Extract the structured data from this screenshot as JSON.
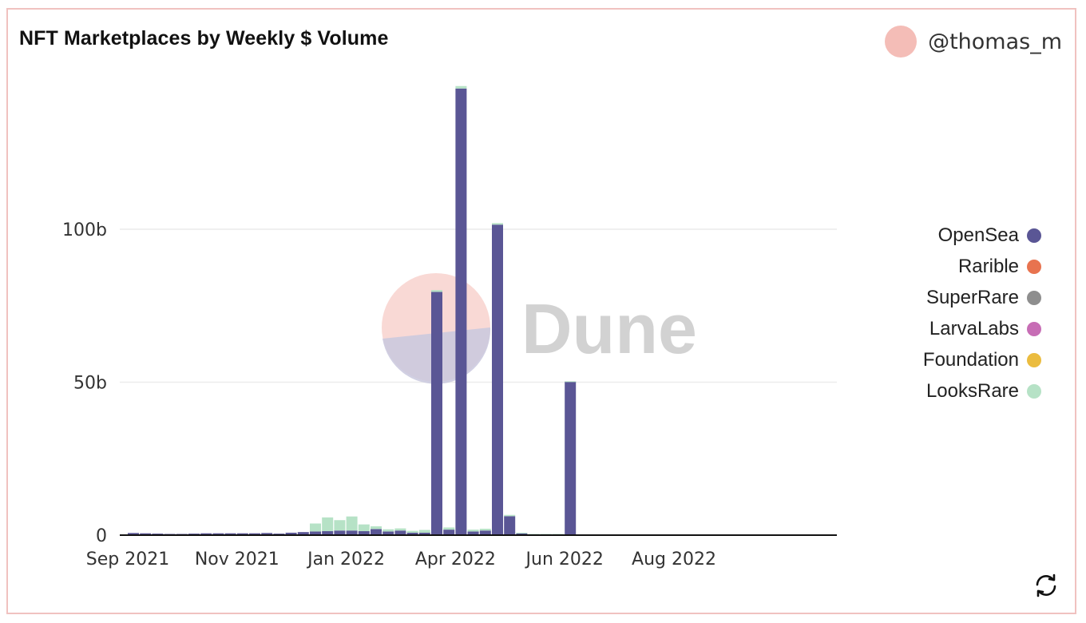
{
  "card": {
    "title": "NFT Marketplaces by Weekly $ Volume",
    "author": "@thomas_m",
    "avatar_color": "#f4bdb7",
    "watermark_text": "Dune",
    "refresh_icon": "refresh-icon"
  },
  "chart_data": {
    "type": "bar",
    "stacked": true,
    "title": "NFT Marketplaces by Weekly $ Volume",
    "xlabel": "",
    "ylabel": "",
    "ylim": [
      0,
      147
    ],
    "y_unit": "b",
    "yticks": [
      {
        "value": 0,
        "label": "0"
      },
      {
        "value": 50,
        "label": "50b"
      },
      {
        "value": 100,
        "label": "100b"
      }
    ],
    "xticks": [
      {
        "week_index": 0,
        "label": "Sep 2021"
      },
      {
        "week_index": 9,
        "label": "Nov 2021"
      },
      {
        "week_index": 18,
        "label": "Jan 2022"
      },
      {
        "week_index": 27,
        "label": "Apr 2022"
      },
      {
        "week_index": 36,
        "label": "Jun 2022"
      },
      {
        "week_index": 45,
        "label": "Aug 2022"
      }
    ],
    "grid": true,
    "legend_position": "right",
    "series": [
      {
        "name": "OpenSea",
        "color": "#5a5695",
        "values": [
          0.7,
          0.6,
          0.5,
          0.4,
          0.4,
          0.5,
          0.6,
          0.6,
          0.6,
          0.6,
          0.6,
          0.7,
          0.5,
          0.8,
          1.0,
          1.2,
          1.3,
          1.5,
          1.5,
          1.3,
          2.0,
          1.2,
          1.5,
          0.8,
          0.8,
          79.5,
          1.8,
          146,
          1.2,
          1.5,
          101.5,
          6.2,
          0.6,
          0.2,
          0.2,
          0.2,
          50.2,
          0.1,
          0.1,
          0.1,
          0.1,
          0.1,
          0.1,
          0.1,
          0.1,
          0.1,
          0.1,
          0.1,
          0.1,
          0.1,
          0.1,
          0.1,
          0.1
        ]
      },
      {
        "name": "Rarible",
        "color": "#e8734f",
        "values": [
          0,
          0,
          0,
          0,
          0,
          0,
          0,
          0,
          0,
          0,
          0,
          0,
          0,
          0,
          0,
          0,
          0,
          0,
          0,
          0,
          0,
          0,
          0,
          0,
          0,
          0,
          0,
          0,
          0,
          0,
          0,
          0,
          0,
          0,
          0,
          0,
          0,
          0,
          0,
          0,
          0,
          0,
          0,
          0,
          0,
          0,
          0,
          0,
          0,
          0,
          0,
          0,
          0
        ]
      },
      {
        "name": "SuperRare",
        "color": "#8e8e8e",
        "values": [
          0,
          0,
          0,
          0,
          0,
          0,
          0,
          0,
          0,
          0,
          0,
          0,
          0,
          0,
          0,
          0,
          0,
          0,
          0,
          0,
          0,
          0,
          0,
          0,
          0,
          0,
          0,
          0,
          0,
          0,
          0,
          0,
          0,
          0,
          0,
          0,
          0,
          0,
          0,
          0,
          0,
          0,
          0,
          0,
          0,
          0,
          0,
          0,
          0,
          0,
          0,
          0,
          0
        ]
      },
      {
        "name": "LarvaLabs",
        "color": "#c76db5",
        "values": [
          0,
          0,
          0,
          0,
          0,
          0,
          0,
          0,
          0,
          0,
          0,
          0,
          0,
          0,
          0,
          0,
          0,
          0,
          0,
          0,
          0,
          0,
          0,
          0,
          0,
          0,
          0,
          0,
          0,
          0,
          0,
          0,
          0,
          0,
          0,
          0,
          0,
          0,
          0,
          0,
          0,
          0,
          0,
          0,
          0,
          0,
          0,
          0,
          0,
          0,
          0,
          0,
          0
        ]
      },
      {
        "name": "Foundation",
        "color": "#ebbc3f",
        "values": [
          0,
          0,
          0,
          0,
          0,
          0,
          0,
          0,
          0,
          0,
          0,
          0,
          0,
          0,
          0,
          0,
          0,
          0,
          0,
          0,
          0,
          0,
          0,
          0,
          0,
          0,
          0,
          0,
          0,
          0,
          0,
          0,
          0,
          0,
          0,
          0,
          0,
          0,
          0,
          0,
          0,
          0,
          0,
          0,
          0,
          0,
          0,
          0,
          0,
          0,
          0,
          0,
          0
        ]
      },
      {
        "name": "LooksRare",
        "color": "#b6e2c6",
        "values": [
          0,
          0,
          0,
          0,
          0,
          0,
          0,
          0,
          0,
          0,
          0,
          0,
          0,
          0,
          0,
          2.6,
          4.5,
          3.4,
          4.6,
          2.2,
          0.9,
          0.7,
          0.7,
          0.6,
          0.9,
          0.6,
          0.7,
          0.8,
          0.6,
          0.6,
          0.5,
          0.4,
          0.2,
          0.2,
          0.2,
          0.2,
          0.1,
          0,
          0,
          0,
          0,
          0,
          0,
          0,
          0,
          0,
          0,
          0,
          0,
          0,
          0,
          0,
          0
        ]
      }
    ]
  }
}
